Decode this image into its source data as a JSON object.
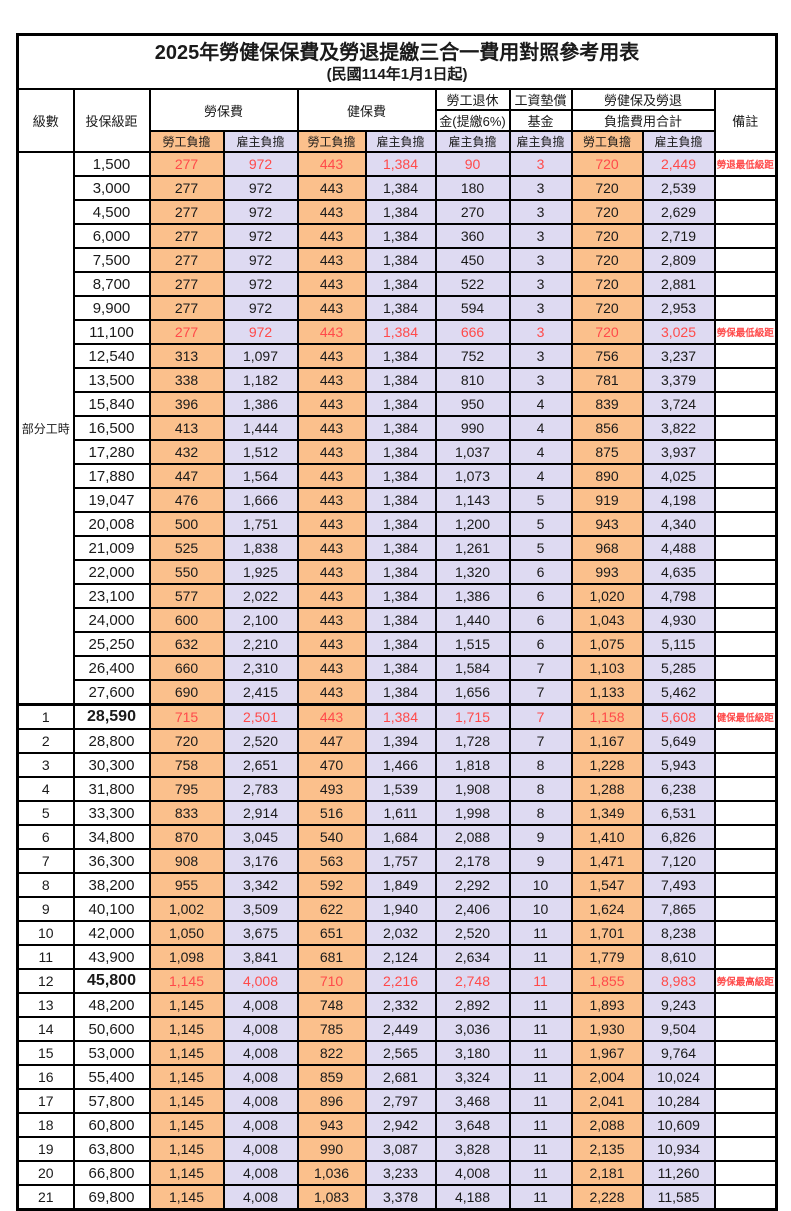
{
  "page": {
    "title": "2025年勞健保保費及勞退提繳三合一費用對照參考用表",
    "subtitle": "(民國114年1月1日起)"
  },
  "colors": {
    "employee_cell_bg": "#FBC08C",
    "employer_cell_bg": "#DEDAF2",
    "highlight_text": "#FF4A4A",
    "border": "#000000"
  },
  "table": {
    "headers": {
      "level": "級數",
      "bracket": "投保級距",
      "labor_insurance": "勞保費",
      "health_insurance": "健保費",
      "pension_line1": "勞工退休",
      "pension_line2": "金(提繳6%)",
      "wage_fund_line1": "工資墊償",
      "wage_fund_line2": "基金",
      "total_line1": "勞健保及勞退",
      "total_line2": "負擔費用合計",
      "remark": "備註",
      "employee_share": "勞工負擔",
      "employer_share": "雇主負擔"
    },
    "part_time_label": "部分工時",
    "part_time_rowspan": 23,
    "rows": [
      {
        "level": "",
        "bracket": "1,500",
        "values": [
          "277",
          "972",
          "443",
          "1,384",
          "90",
          "3",
          "720",
          "2,449"
        ],
        "remark": "勞退最低級距",
        "highlight": true
      },
      {
        "level": "",
        "bracket": "3,000",
        "values": [
          "277",
          "972",
          "443",
          "1,384",
          "180",
          "3",
          "720",
          "2,539"
        ],
        "remark": ""
      },
      {
        "level": "",
        "bracket": "4,500",
        "values": [
          "277",
          "972",
          "443",
          "1,384",
          "270",
          "3",
          "720",
          "2,629"
        ],
        "remark": ""
      },
      {
        "level": "",
        "bracket": "6,000",
        "values": [
          "277",
          "972",
          "443",
          "1,384",
          "360",
          "3",
          "720",
          "2,719"
        ],
        "remark": ""
      },
      {
        "level": "",
        "bracket": "7,500",
        "values": [
          "277",
          "972",
          "443",
          "1,384",
          "450",
          "3",
          "720",
          "2,809"
        ],
        "remark": ""
      },
      {
        "level": "",
        "bracket": "8,700",
        "values": [
          "277",
          "972",
          "443",
          "1,384",
          "522",
          "3",
          "720",
          "2,881"
        ],
        "remark": ""
      },
      {
        "level": "",
        "bracket": "9,900",
        "values": [
          "277",
          "972",
          "443",
          "1,384",
          "594",
          "3",
          "720",
          "2,953"
        ],
        "remark": ""
      },
      {
        "level": "",
        "bracket": "11,100",
        "values": [
          "277",
          "972",
          "443",
          "1,384",
          "666",
          "3",
          "720",
          "3,025"
        ],
        "remark": "勞保最低級距",
        "highlight": true
      },
      {
        "level": "",
        "bracket": "12,540",
        "values": [
          "313",
          "1,097",
          "443",
          "1,384",
          "752",
          "3",
          "756",
          "3,237"
        ],
        "remark": ""
      },
      {
        "level": "",
        "bracket": "13,500",
        "values": [
          "338",
          "1,182",
          "443",
          "1,384",
          "810",
          "3",
          "781",
          "3,379"
        ],
        "remark": ""
      },
      {
        "level": "",
        "bracket": "15,840",
        "values": [
          "396",
          "1,386",
          "443",
          "1,384",
          "950",
          "4",
          "839",
          "3,724"
        ],
        "remark": ""
      },
      {
        "level": "",
        "bracket": "16,500",
        "values": [
          "413",
          "1,444",
          "443",
          "1,384",
          "990",
          "4",
          "856",
          "3,822"
        ],
        "remark": ""
      },
      {
        "level": "",
        "bracket": "17,280",
        "values": [
          "432",
          "1,512",
          "443",
          "1,384",
          "1,037",
          "4",
          "875",
          "3,937"
        ],
        "remark": ""
      },
      {
        "level": "",
        "bracket": "17,880",
        "values": [
          "447",
          "1,564",
          "443",
          "1,384",
          "1,073",
          "4",
          "890",
          "4,025"
        ],
        "remark": ""
      },
      {
        "level": "",
        "bracket": "19,047",
        "values": [
          "476",
          "1,666",
          "443",
          "1,384",
          "1,143",
          "5",
          "919",
          "4,198"
        ],
        "remark": ""
      },
      {
        "level": "",
        "bracket": "20,008",
        "values": [
          "500",
          "1,751",
          "443",
          "1,384",
          "1,200",
          "5",
          "943",
          "4,340"
        ],
        "remark": ""
      },
      {
        "level": "",
        "bracket": "21,009",
        "values": [
          "525",
          "1,838",
          "443",
          "1,384",
          "1,261",
          "5",
          "968",
          "4,488"
        ],
        "remark": ""
      },
      {
        "level": "",
        "bracket": "22,000",
        "values": [
          "550",
          "1,925",
          "443",
          "1,384",
          "1,320",
          "6",
          "993",
          "4,635"
        ],
        "remark": ""
      },
      {
        "level": "",
        "bracket": "23,100",
        "values": [
          "577",
          "2,022",
          "443",
          "1,384",
          "1,386",
          "6",
          "1,020",
          "4,798"
        ],
        "remark": ""
      },
      {
        "level": "",
        "bracket": "24,000",
        "values": [
          "600",
          "2,100",
          "443",
          "1,384",
          "1,440",
          "6",
          "1,043",
          "4,930"
        ],
        "remark": ""
      },
      {
        "level": "",
        "bracket": "25,250",
        "values": [
          "632",
          "2,210",
          "443",
          "1,384",
          "1,515",
          "6",
          "1,075",
          "5,115"
        ],
        "remark": ""
      },
      {
        "level": "",
        "bracket": "26,400",
        "values": [
          "660",
          "2,310",
          "443",
          "1,384",
          "1,584",
          "7",
          "1,103",
          "5,285"
        ],
        "remark": ""
      },
      {
        "level": "",
        "bracket": "27,600",
        "values": [
          "690",
          "2,415",
          "443",
          "1,384",
          "1,656",
          "7",
          "1,133",
          "5,462"
        ],
        "remark": ""
      },
      {
        "level": "1",
        "bracket": "28,590",
        "values": [
          "715",
          "2,501",
          "443",
          "1,384",
          "1,715",
          "7",
          "1,158",
          "5,608"
        ],
        "remark": "健保最低級距",
        "highlight": true,
        "big": true,
        "section": true
      },
      {
        "level": "2",
        "bracket": "28,800",
        "values": [
          "720",
          "2,520",
          "447",
          "1,394",
          "1,728",
          "7",
          "1,167",
          "5,649"
        ],
        "remark": ""
      },
      {
        "level": "3",
        "bracket": "30,300",
        "values": [
          "758",
          "2,651",
          "470",
          "1,466",
          "1,818",
          "8",
          "1,228",
          "5,943"
        ],
        "remark": ""
      },
      {
        "level": "4",
        "bracket": "31,800",
        "values": [
          "795",
          "2,783",
          "493",
          "1,539",
          "1,908",
          "8",
          "1,288",
          "6,238"
        ],
        "remark": ""
      },
      {
        "level": "5",
        "bracket": "33,300",
        "values": [
          "833",
          "2,914",
          "516",
          "1,611",
          "1,998",
          "8",
          "1,349",
          "6,531"
        ],
        "remark": ""
      },
      {
        "level": "6",
        "bracket": "34,800",
        "values": [
          "870",
          "3,045",
          "540",
          "1,684",
          "2,088",
          "9",
          "1,410",
          "6,826"
        ],
        "remark": ""
      },
      {
        "level": "7",
        "bracket": "36,300",
        "values": [
          "908",
          "3,176",
          "563",
          "1,757",
          "2,178",
          "9",
          "1,471",
          "7,120"
        ],
        "remark": ""
      },
      {
        "level": "8",
        "bracket": "38,200",
        "values": [
          "955",
          "3,342",
          "592",
          "1,849",
          "2,292",
          "10",
          "1,547",
          "7,493"
        ],
        "remark": ""
      },
      {
        "level": "9",
        "bracket": "40,100",
        "values": [
          "1,002",
          "3,509",
          "622",
          "1,940",
          "2,406",
          "10",
          "1,624",
          "7,865"
        ],
        "remark": ""
      },
      {
        "level": "10",
        "bracket": "42,000",
        "values": [
          "1,050",
          "3,675",
          "651",
          "2,032",
          "2,520",
          "11",
          "1,701",
          "8,238"
        ],
        "remark": ""
      },
      {
        "level": "11",
        "bracket": "43,900",
        "values": [
          "1,098",
          "3,841",
          "681",
          "2,124",
          "2,634",
          "11",
          "1,779",
          "8,610"
        ],
        "remark": ""
      },
      {
        "level": "12",
        "bracket": "45,800",
        "values": [
          "1,145",
          "4,008",
          "710",
          "2,216",
          "2,748",
          "11",
          "1,855",
          "8,983"
        ],
        "remark": "勞保最高級距",
        "highlight": true,
        "big": true
      },
      {
        "level": "13",
        "bracket": "48,200",
        "values": [
          "1,145",
          "4,008",
          "748",
          "2,332",
          "2,892",
          "11",
          "1,893",
          "9,243"
        ],
        "remark": ""
      },
      {
        "level": "14",
        "bracket": "50,600",
        "values": [
          "1,145",
          "4,008",
          "785",
          "2,449",
          "3,036",
          "11",
          "1,930",
          "9,504"
        ],
        "remark": ""
      },
      {
        "level": "15",
        "bracket": "53,000",
        "values": [
          "1,145",
          "4,008",
          "822",
          "2,565",
          "3,180",
          "11",
          "1,967",
          "9,764"
        ],
        "remark": ""
      },
      {
        "level": "16",
        "bracket": "55,400",
        "values": [
          "1,145",
          "4,008",
          "859",
          "2,681",
          "3,324",
          "11",
          "2,004",
          "10,024"
        ],
        "remark": ""
      },
      {
        "level": "17",
        "bracket": "57,800",
        "values": [
          "1,145",
          "4,008",
          "896",
          "2,797",
          "3,468",
          "11",
          "2,041",
          "10,284"
        ],
        "remark": ""
      },
      {
        "level": "18",
        "bracket": "60,800",
        "values": [
          "1,145",
          "4,008",
          "943",
          "2,942",
          "3,648",
          "11",
          "2,088",
          "10,609"
        ],
        "remark": ""
      },
      {
        "level": "19",
        "bracket": "63,800",
        "values": [
          "1,145",
          "4,008",
          "990",
          "3,087",
          "3,828",
          "11",
          "2,135",
          "10,934"
        ],
        "remark": ""
      },
      {
        "level": "20",
        "bracket": "66,800",
        "values": [
          "1,145",
          "4,008",
          "1,036",
          "3,233",
          "4,008",
          "11",
          "2,181",
          "11,260"
        ],
        "remark": ""
      },
      {
        "level": "21",
        "bracket": "69,800",
        "values": [
          "1,145",
          "4,008",
          "1,083",
          "3,378",
          "4,188",
          "11",
          "2,228",
          "11,585"
        ],
        "remark": ""
      }
    ]
  }
}
